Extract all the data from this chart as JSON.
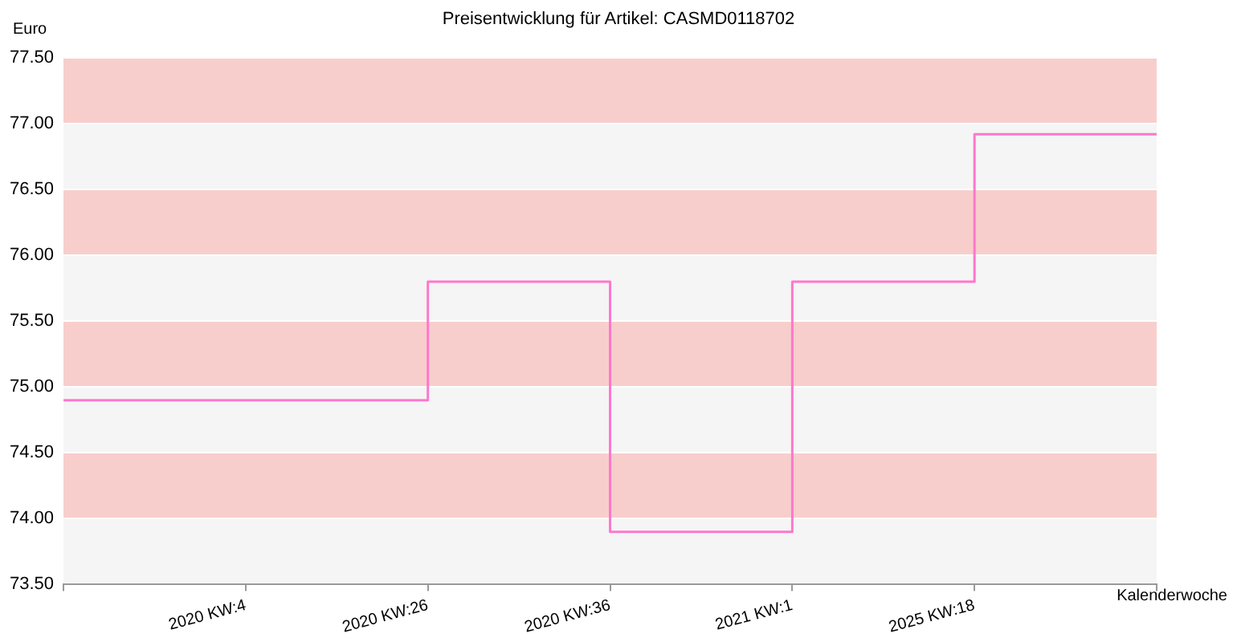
{
  "chart_data": {
    "type": "step",
    "title": "Preisentwicklung für Artikel: CASMD0118702",
    "xlabel": "Kalenderwoche",
    "ylabel": "Euro",
    "categories": [
      null,
      "2020 KW:4",
      "2020 KW:26",
      "2020 KW:36",
      "2021 KW:1",
      "2025 KW:18",
      null
    ],
    "series": [
      {
        "color": "#ff77cc",
        "values": [
          74.9,
          74.9,
          75.8,
          73.9,
          75.8,
          76.92,
          76.92
        ]
      }
    ],
    "ylim": [
      73.5,
      77.5
    ],
    "yticks": [
      {
        "value": 73.5,
        "label": "73.50"
      },
      {
        "value": 74,
        "label": "74.00"
      },
      {
        "value": 74.5,
        "label": "74.50"
      },
      {
        "value": 75,
        "label": "75.00"
      },
      {
        "value": 75.5,
        "label": "75.50"
      },
      {
        "value": 76,
        "label": "76.00"
      },
      {
        "value": 76.5,
        "label": "76.50"
      },
      {
        "value": 77,
        "label": "77.00"
      },
      {
        "value": 77.5,
        "label": "77.50"
      }
    ],
    "bands": [
      {
        "axis": "y",
        "from": 74,
        "to": 74.5,
        "color": "#f8cecc"
      },
      {
        "axis": "y",
        "from": 75,
        "to": 75.5,
        "color": "#f8cecc"
      },
      {
        "axis": "y",
        "from": 76,
        "to": 76.5,
        "color": "#f8cecc"
      },
      {
        "axis": "y",
        "from": 77,
        "to": 77.5,
        "color": "#f8cecc"
      }
    ],
    "grid": true,
    "legend": false,
    "marker": "none",
    "line_style": "solid"
  }
}
